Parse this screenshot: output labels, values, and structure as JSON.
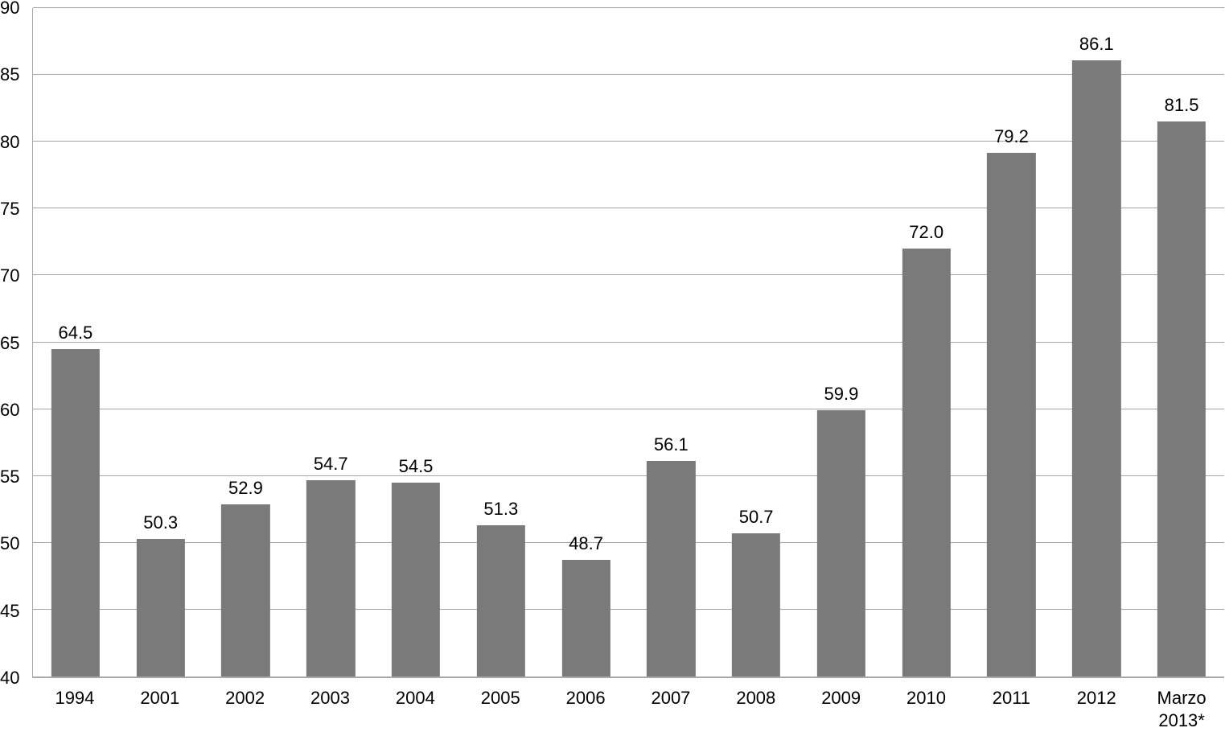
{
  "chart_data": {
    "type": "bar",
    "title": "",
    "xlabel": "",
    "ylabel": "",
    "categories": [
      "1994",
      "2001",
      "2002",
      "2003",
      "2004",
      "2005",
      "2006",
      "2007",
      "2008",
      "2009",
      "2010",
      "2011",
      "2012",
      "Marzo\n2013*"
    ],
    "values": [
      64.5,
      50.3,
      52.9,
      54.7,
      54.5,
      51.3,
      48.7,
      56.1,
      50.7,
      59.9,
      72.0,
      79.2,
      86.1,
      81.5
    ],
    "value_labels": [
      "64.5",
      "50.3",
      "52.9",
      "54.7",
      "54.5",
      "51.3",
      "48.7",
      "56.1",
      "50.7",
      "59.9",
      "72.0",
      "79.2",
      "86.1",
      "81.5"
    ],
    "ylim": [
      40,
      90
    ],
    "yticks": [
      40,
      45,
      50,
      55,
      60,
      65,
      70,
      75,
      80,
      85,
      90
    ],
    "grid": true,
    "legend_position": "none",
    "colors": {
      "bar_fill": "#7a7a7a",
      "gridline": "#a6a6a6",
      "axis_line": "#a9a9a9",
      "label_text": "#000000",
      "background": "#ffffff"
    }
  }
}
